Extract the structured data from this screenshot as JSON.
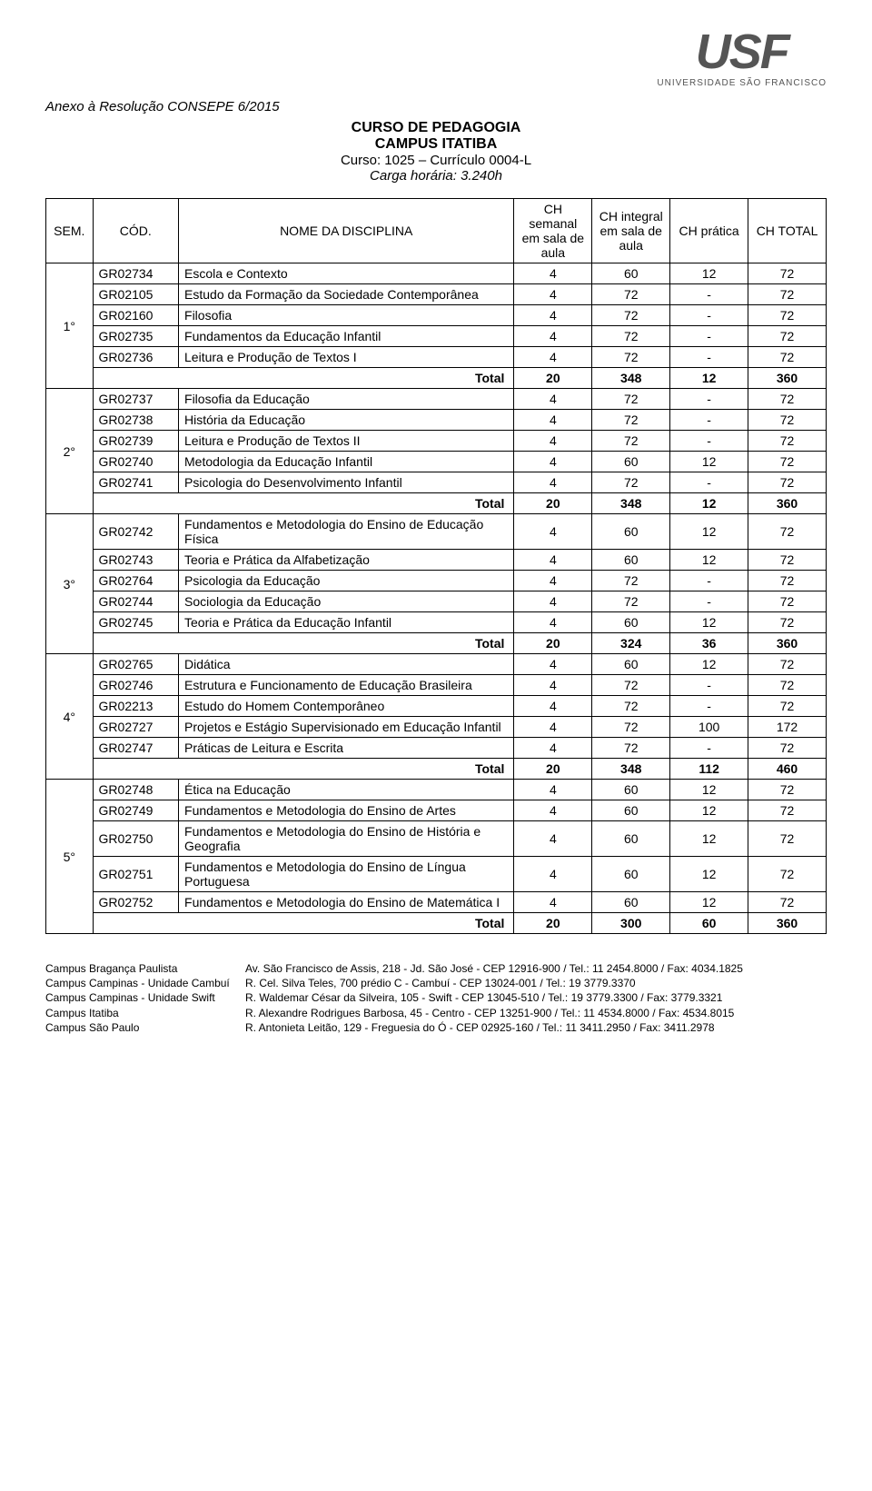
{
  "logo": {
    "text": "USF",
    "subtitle": "UNIVERSIDADE SÃO FRANCISCO"
  },
  "anexo": "Anexo à Resolução CONSEPE 6/2015",
  "header": {
    "title": "CURSO DE PEDAGOGIA",
    "campus": "CAMPUS ITATIBA",
    "curso": "Curso: 1025 – Currículo 0004-L",
    "carga": "Carga horária: 3.240h"
  },
  "columns": {
    "sem": "SEM.",
    "cod": "CÓD.",
    "nome": "NOME DA DISCIPLINA",
    "ch_semanal": "CH semanal em sala de aula",
    "ch_integral": "CH integral em sala de aula",
    "ch_pratica": "CH prática",
    "ch_total": "CH TOTAL"
  },
  "total_label": "Total",
  "semesters": [
    {
      "label": "1°",
      "rows": [
        {
          "cod": "GR02734",
          "nome": "Escola e Contexto",
          "a": "4",
          "b": "60",
          "c": "12",
          "d": "72"
        },
        {
          "cod": "GR02105",
          "nome": "Estudo da Formação da Sociedade Contemporânea",
          "a": "4",
          "b": "72",
          "c": "-",
          "d": "72"
        },
        {
          "cod": "GR02160",
          "nome": "Filosofia",
          "a": "4",
          "b": "72",
          "c": "-",
          "d": "72"
        },
        {
          "cod": "GR02735",
          "nome": "Fundamentos da Educação Infantil",
          "a": "4",
          "b": "72",
          "c": "-",
          "d": "72"
        },
        {
          "cod": "GR02736",
          "nome": "Leitura e Produção de Textos I",
          "a": "4",
          "b": "72",
          "c": "-",
          "d": "72"
        }
      ],
      "total": {
        "a": "20",
        "b": "348",
        "c": "12",
        "d": "360"
      }
    },
    {
      "label": "2°",
      "rows": [
        {
          "cod": "GR02737",
          "nome": "Filosofia da Educação",
          "a": "4",
          "b": "72",
          "c": "-",
          "d": "72"
        },
        {
          "cod": "GR02738",
          "nome": "História da Educação",
          "a": "4",
          "b": "72",
          "c": "-",
          "d": "72"
        },
        {
          "cod": "GR02739",
          "nome": "Leitura e Produção de Textos II",
          "a": "4",
          "b": "72",
          "c": "-",
          "d": "72"
        },
        {
          "cod": "GR02740",
          "nome": "Metodologia da Educação Infantil",
          "a": "4",
          "b": "60",
          "c": "12",
          "d": "72"
        },
        {
          "cod": "GR02741",
          "nome": "Psicologia do Desenvolvimento Infantil",
          "a": "4",
          "b": "72",
          "c": "-",
          "d": "72"
        }
      ],
      "total": {
        "a": "20",
        "b": "348",
        "c": "12",
        "d": "360"
      }
    },
    {
      "label": "3°",
      "rows": [
        {
          "cod": "GR02742",
          "nome": "Fundamentos e Metodologia do Ensino de Educação Física",
          "a": "4",
          "b": "60",
          "c": "12",
          "d": "72"
        },
        {
          "cod": "GR02743",
          "nome": "Teoria e Prática da Alfabetização",
          "a": "4",
          "b": "60",
          "c": "12",
          "d": "72"
        },
        {
          "cod": "GR02764",
          "nome": "Psicologia da Educação",
          "a": "4",
          "b": "72",
          "c": "-",
          "d": "72"
        },
        {
          "cod": "GR02744",
          "nome": "Sociologia da Educação",
          "a": "4",
          "b": "72",
          "c": "-",
          "d": "72"
        },
        {
          "cod": "GR02745",
          "nome": "Teoria e Prática da Educação Infantil",
          "a": "4",
          "b": "60",
          "c": "12",
          "d": "72"
        }
      ],
      "total": {
        "a": "20",
        "b": "324",
        "c": "36",
        "d": "360"
      }
    },
    {
      "label": "4°",
      "rows": [
        {
          "cod": "GR02765",
          "nome": "Didática",
          "a": "4",
          "b": "60",
          "c": "12",
          "d": "72"
        },
        {
          "cod": "GR02746",
          "nome": "Estrutura e Funcionamento de Educação Brasileira",
          "a": "4",
          "b": "72",
          "c": "-",
          "d": "72"
        },
        {
          "cod": "GR02213",
          "nome": "Estudo do Homem Contemporâneo",
          "a": "4",
          "b": "72",
          "c": "-",
          "d": "72"
        },
        {
          "cod": "GR02727",
          "nome": "Projetos e Estágio Supervisionado em Educação Infantil",
          "a": "4",
          "b": "72",
          "c": "100",
          "d": "172"
        },
        {
          "cod": "GR02747",
          "nome": "Práticas de Leitura e Escrita",
          "a": "4",
          "b": "72",
          "c": "-",
          "d": "72"
        }
      ],
      "total": {
        "a": "20",
        "b": "348",
        "c": "112",
        "d": "460"
      }
    },
    {
      "label": "5°",
      "rows": [
        {
          "cod": "GR02748",
          "nome": "Ética na Educação",
          "a": "4",
          "b": "60",
          "c": "12",
          "d": "72"
        },
        {
          "cod": "GR02749",
          "nome": "Fundamentos e Metodologia do Ensino de Artes",
          "a": "4",
          "b": "60",
          "c": "12",
          "d": "72"
        },
        {
          "cod": "GR02750",
          "nome": "Fundamentos e Metodologia do Ensino de História e Geografia",
          "a": "4",
          "b": "60",
          "c": "12",
          "d": "72"
        },
        {
          "cod": "GR02751",
          "nome": "Fundamentos e Metodologia do Ensino de Língua Portuguesa",
          "a": "4",
          "b": "60",
          "c": "12",
          "d": "72"
        },
        {
          "cod": "GR02752",
          "nome": "Fundamentos e Metodologia do Ensino de Matemática I",
          "a": "4",
          "b": "60",
          "c": "12",
          "d": "72"
        }
      ],
      "total": {
        "a": "20",
        "b": "300",
        "c": "60",
        "d": "360"
      }
    }
  ],
  "footer": [
    {
      "label": "Campus Bragança Paulista",
      "addr": "Av. São Francisco de Assis, 218 - Jd. São José - CEP 12916-900 / Tel.: 11 2454.8000 / Fax: 4034.1825"
    },
    {
      "label": "Campus Campinas - Unidade Cambuí",
      "addr": "R. Cel. Silva Teles, 700 prédio C  - Cambuí - CEP 13024-001 / Tel.: 19 3779.3370"
    },
    {
      "label": "Campus Campinas - Unidade Swift",
      "addr": "R. Waldemar César da Silveira, 105 - Swift - CEP 13045-510 / Tel.: 19 3779.3300 / Fax: 3779.3321"
    },
    {
      "label": "Campus Itatiba",
      "addr": "R. Alexandre Rodrigues Barbosa, 45 - Centro - CEP 13251-900 / Tel.: 11 4534.8000 / Fax: 4534.8015"
    },
    {
      "label": "Campus São Paulo",
      "addr": "R. Antonieta Leitão, 129 - Freguesia do Ó - CEP 02925-160 / Tel.: 11 3411.2950 / Fax: 3411.2978"
    }
  ]
}
